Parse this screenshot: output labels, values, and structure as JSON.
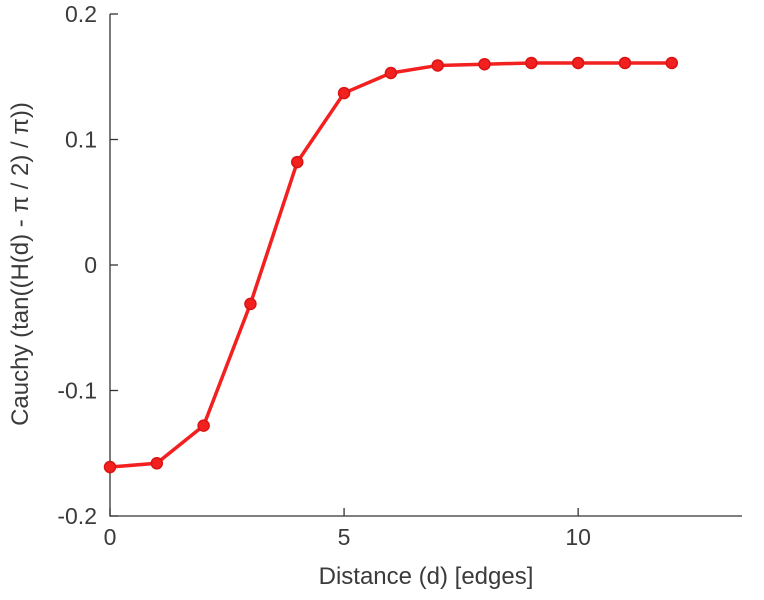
{
  "chart_data": {
    "type": "line",
    "title": "",
    "xlabel": "Distance (d) [edges]",
    "ylabel": "Cauchy (tan((H(d) -  π / 2) /  π))",
    "x": [
      0,
      1,
      2,
      3,
      4,
      5,
      6,
      7,
      8,
      9,
      10,
      11,
      12
    ],
    "y": [
      -0.161,
      -0.158,
      -0.128,
      -0.031,
      0.082,
      0.137,
      0.153,
      0.159,
      0.16,
      0.161,
      0.161,
      0.161,
      0.161
    ],
    "xlim": [
      0,
      13.5
    ],
    "ylim": [
      -0.2,
      0.2
    ],
    "xticks": [
      0,
      5,
      10
    ],
    "xtick_labels": [
      "0",
      "5",
      "10"
    ],
    "yticks": [
      -0.2,
      -0.1,
      0,
      0.1,
      0.2
    ],
    "ytick_labels": [
      "-0.2",
      "-0.1",
      "0",
      "0.1",
      "0.2"
    ],
    "grid": false,
    "legend": null,
    "line_color": "#f32020",
    "marker": "filled-circle",
    "marker_edge_color": "#d91414",
    "axis_color": "#333333"
  }
}
